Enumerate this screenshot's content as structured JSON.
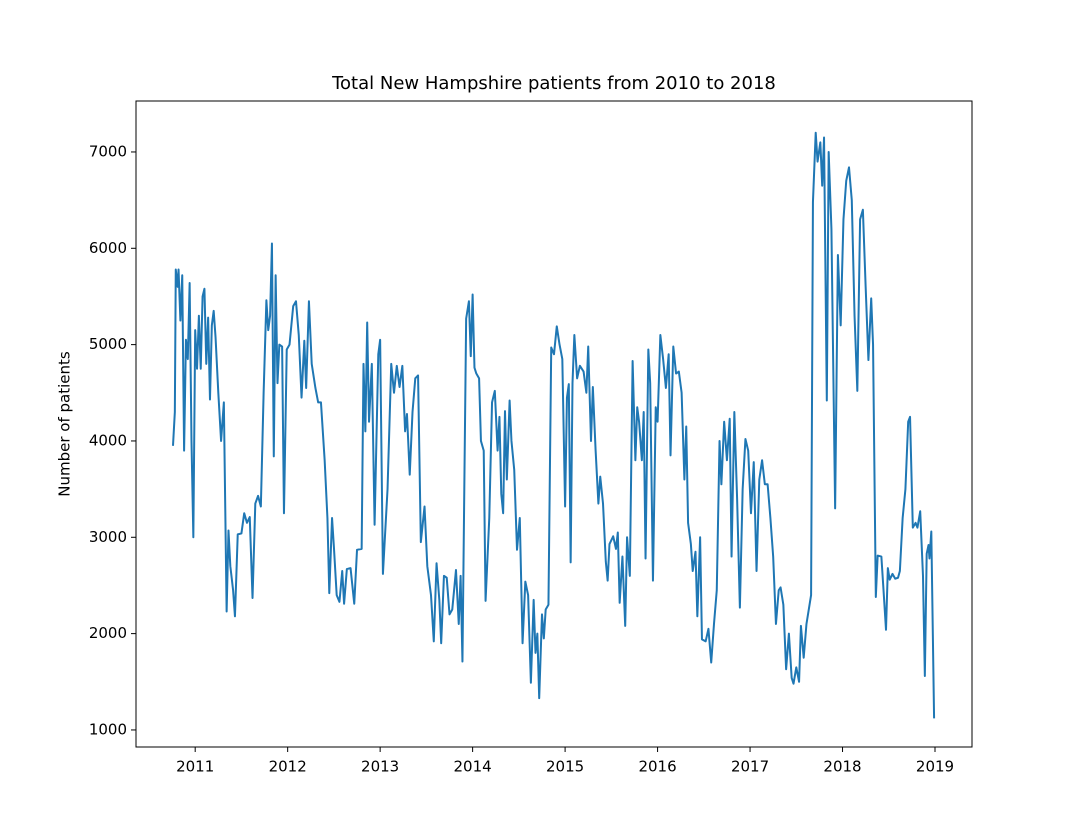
{
  "chart_data": {
    "type": "line",
    "title": "Total New Hampshire patients from 2010 to 2018",
    "ylabel": "Number of patients",
    "xlim": [
      2010.36,
      2019.4
    ],
    "ylim": [
      823,
      7529
    ],
    "xticks": [
      2011,
      2012,
      2013,
      2014,
      2015,
      2016,
      2017,
      2018,
      2019
    ],
    "yticks": [
      1000,
      2000,
      3000,
      4000,
      5000,
      6000,
      7000
    ],
    "grid": false,
    "series": [
      {
        "color": "#1f77b4",
        "x": [
          2010.76,
          2010.78,
          2010.79,
          2010.81,
          2010.82,
          2010.84,
          2010.86,
          2010.88,
          2010.9,
          2010.92,
          2010.94,
          2010.96,
          2010.98,
          2011.0,
          2011.02,
          2011.04,
          2011.06,
          2011.08,
          2011.1,
          2011.12,
          2011.14,
          2011.16,
          2011.18,
          2011.2,
          2011.22,
          2011.25,
          2011.28,
          2011.31,
          2011.34,
          2011.36,
          2011.38,
          2011.41,
          2011.43,
          2011.46,
          2011.5,
          2011.53,
          2011.56,
          2011.59,
          2011.62,
          2011.65,
          2011.68,
          2011.71,
          2011.74,
          2011.77,
          2011.79,
          2011.81,
          2011.83,
          2011.85,
          2011.87,
          2011.89,
          2011.91,
          2011.94,
          2011.96,
          2011.99,
          2012.02,
          2012.06,
          2012.09,
          2012.12,
          2012.15,
          2012.18,
          2012.2,
          2012.23,
          2012.26,
          2012.3,
          2012.33,
          2012.36,
          2012.4,
          2012.43,
          2012.45,
          2012.48,
          2012.5,
          2012.53,
          2012.56,
          2012.59,
          2012.61,
          2012.64,
          2012.68,
          2012.72,
          2012.75,
          2012.8,
          2012.82,
          2012.84,
          2012.86,
          2012.88,
          2012.91,
          2012.94,
          2012.98,
          2013.0,
          2013.03,
          2013.08,
          2013.12,
          2013.15,
          2013.18,
          2013.21,
          2013.24,
          2013.27,
          2013.29,
          2013.32,
          2013.35,
          2013.38,
          2013.41,
          2013.44,
          2013.48,
          2013.51,
          2013.55,
          2013.58,
          2013.61,
          2013.64,
          2013.66,
          2013.69,
          2013.72,
          2013.75,
          2013.78,
          2013.82,
          2013.85,
          2013.87,
          2013.89,
          2013.91,
          2013.93,
          2013.96,
          2013.98,
          2014.0,
          2014.02,
          2014.04,
          2014.07,
          2014.09,
          2014.12,
          2014.14,
          2014.18,
          2014.21,
          2014.24,
          2014.27,
          2014.29,
          2014.31,
          2014.33,
          2014.35,
          2014.37,
          2014.4,
          2014.42,
          2014.45,
          2014.48,
          2014.51,
          2014.54,
          2014.57,
          2014.6,
          2014.63,
          2014.66,
          2014.68,
          2014.7,
          2014.72,
          2014.75,
          2014.77,
          2014.79,
          2014.82,
          2014.85,
          2014.88,
          2014.91,
          2014.94,
          2014.97,
          2015.0,
          2015.02,
          2015.04,
          2015.06,
          2015.08,
          2015.1,
          2015.13,
          2015.16,
          2015.2,
          2015.23,
          2015.25,
          2015.28,
          2015.3,
          2015.33,
          2015.36,
          2015.38,
          2015.41,
          2015.44,
          2015.46,
          2015.48,
          2015.52,
          2015.55,
          2015.57,
          2015.59,
          2015.62,
          2015.65,
          2015.67,
          2015.7,
          2015.73,
          2015.76,
          2015.78,
          2015.8,
          2015.83,
          2015.85,
          2015.87,
          2015.9,
          2015.92,
          2015.95,
          2015.98,
          2016.0,
          2016.03,
          2016.06,
          2016.09,
          2016.12,
          2016.14,
          2016.17,
          2016.2,
          2016.23,
          2016.26,
          2016.29,
          2016.31,
          2016.33,
          2016.36,
          2016.38,
          2016.41,
          2016.43,
          2016.46,
          2016.48,
          2016.52,
          2016.55,
          2016.58,
          2016.61,
          2016.64,
          2016.67,
          2016.69,
          2016.72,
          2016.75,
          2016.78,
          2016.8,
          2016.83,
          2016.86,
          2016.89,
          2016.92,
          2016.95,
          2016.98,
          2017.01,
          2017.04,
          2017.07,
          2017.1,
          2017.13,
          2017.16,
          2017.19,
          2017.22,
          2017.25,
          2017.28,
          2017.31,
          2017.33,
          2017.36,
          2017.39,
          2017.42,
          2017.45,
          2017.47,
          2017.5,
          2017.53,
          2017.55,
          2017.58,
          2017.61,
          2017.66,
          2017.68,
          2017.71,
          2017.73,
          2017.76,
          2017.78,
          2017.8,
          2017.83,
          2017.85,
          2017.88,
          2017.92,
          2017.95,
          2017.98,
          2018.01,
          2018.04,
          2018.07,
          2018.1,
          2018.13,
          2018.16,
          2018.19,
          2018.22,
          2018.25,
          2018.28,
          2018.31,
          2018.33,
          2018.36,
          2018.38,
          2018.42,
          2018.44,
          2018.47,
          2018.49,
          2018.51,
          2018.54,
          2018.57,
          2018.6,
          2018.62,
          2018.65,
          2018.68,
          2018.71,
          2018.73,
          2018.76,
          2018.79,
          2018.81,
          2018.84,
          2018.87,
          2018.89,
          2018.91,
          2018.93,
          2018.94,
          2018.96,
          2018.99
        ],
        "values": [
          3950,
          4300,
          5780,
          5600,
          5780,
          5250,
          5720,
          3900,
          5050,
          4850,
          5640,
          4000,
          3000,
          5150,
          4750,
          5300,
          4750,
          5500,
          5580,
          4800,
          5280,
          4430,
          5200,
          5350,
          5080,
          4500,
          4000,
          4400,
          2230,
          3070,
          2700,
          2450,
          2180,
          3030,
          3040,
          3250,
          3150,
          3210,
          2370,
          3350,
          3430,
          3320,
          4500,
          5460,
          5150,
          5300,
          6050,
          3840,
          5720,
          4600,
          5000,
          4980,
          3250,
          4950,
          5000,
          5400,
          5450,
          5100,
          4450,
          5040,
          4550,
          5450,
          4800,
          4550,
          4400,
          4400,
          3800,
          3200,
          2420,
          3200,
          2900,
          2400,
          2330,
          2650,
          2310,
          2670,
          2680,
          2310,
          2870,
          2880,
          4800,
          4100,
          5230,
          4200,
          4800,
          3130,
          4900,
          5050,
          2620,
          3500,
          4800,
          4500,
          4780,
          4560,
          4780,
          4100,
          4280,
          3650,
          4300,
          4650,
          4680,
          2950,
          3320,
          2700,
          2400,
          1920,
          2730,
          2350,
          1900,
          2600,
          2580,
          2200,
          2250,
          2660,
          2100,
          2600,
          1710,
          3500,
          5270,
          5450,
          4880,
          5520,
          4760,
          4700,
          4650,
          4000,
          3900,
          2340,
          3200,
          4400,
          4520,
          3900,
          4250,
          3450,
          3250,
          4310,
          3600,
          4420,
          4000,
          3700,
          2870,
          3200,
          1900,
          2540,
          2400,
          1490,
          2350,
          1800,
          2000,
          1330,
          2200,
          1950,
          2250,
          2300,
          4970,
          4900,
          5190,
          5000,
          4850,
          3320,
          4450,
          4590,
          2740,
          4600,
          5100,
          4650,
          4780,
          4720,
          4500,
          4980,
          4000,
          4560,
          3900,
          3350,
          3630,
          3350,
          2750,
          2550,
          2930,
          3010,
          2880,
          3050,
          2320,
          2800,
          2080,
          3000,
          2600,
          4830,
          3800,
          4350,
          4200,
          3800,
          4300,
          2780,
          4950,
          4600,
          2550,
          4350,
          4200,
          5100,
          4850,
          4550,
          4900,
          3850,
          4980,
          4700,
          4720,
          4500,
          3600,
          4150,
          3150,
          2930,
          2650,
          2850,
          2180,
          3000,
          1940,
          1920,
          2050,
          1700,
          2100,
          2450,
          4000,
          3550,
          4200,
          3800,
          4230,
          2800,
          4300,
          3400,
          2270,
          3500,
          4020,
          3900,
          3250,
          3780,
          2650,
          3600,
          3800,
          3550,
          3550,
          3200,
          2800,
          2100,
          2450,
          2480,
          2300,
          1630,
          2000,
          1540,
          1480,
          1650,
          1500,
          2080,
          1750,
          2100,
          2400,
          6480,
          7200,
          6900,
          7100,
          6650,
          7150,
          4420,
          7000,
          6200,
          3300,
          5930,
          5200,
          6300,
          6700,
          6840,
          6500,
          5300,
          4520,
          6300,
          6400,
          5600,
          4840,
          5480,
          5000,
          2380,
          2810,
          2800,
          2500,
          2040,
          2680,
          2560,
          2620,
          2570,
          2580,
          2650,
          3200,
          3500,
          4200,
          4250,
          3100,
          3150,
          3100,
          3270,
          2600,
          1560,
          2830,
          2920,
          2780,
          3060,
          1120
        ]
      }
    ]
  }
}
